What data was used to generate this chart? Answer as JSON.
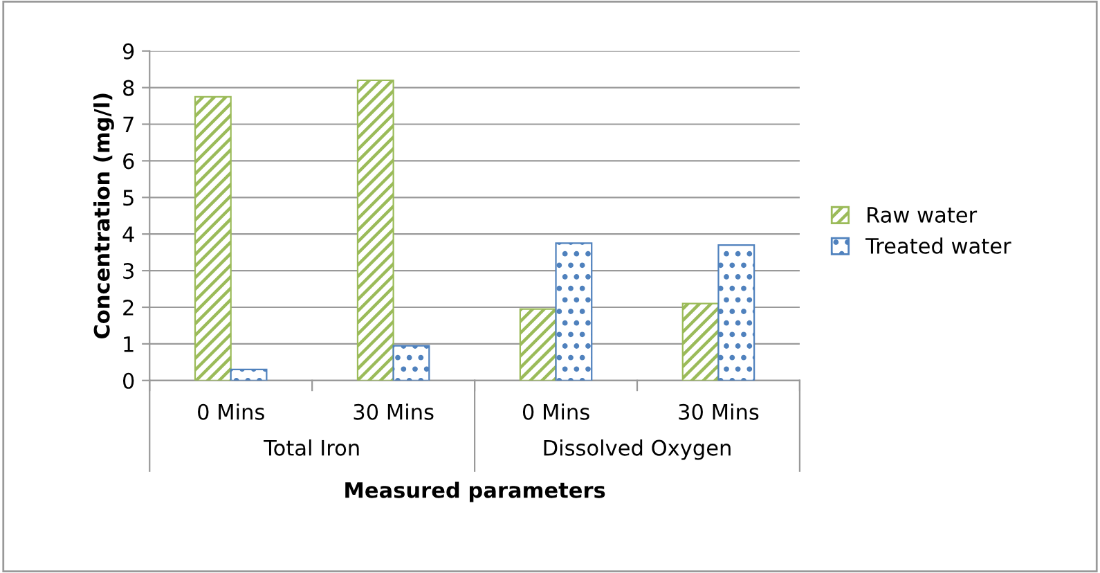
{
  "chart_data": {
    "type": "bar",
    "xlabel": "Measured parameters",
    "ylabel": "Concentration (mg/l)",
    "categories": [
      "0 Mins",
      "30 Mins",
      "0 Mins",
      "30 Mins"
    ],
    "annotations": [
      "Total Iron",
      "Dissolved Oxygen"
    ],
    "series": [
      {
        "name": "Raw water",
        "color": "#9bbb59",
        "values": [
          7.75,
          8.2,
          1.95,
          2.1
        ]
      },
      {
        "name": "Treated water",
        "color": "#4f81bd",
        "values": [
          0.3,
          0.95,
          3.75,
          3.7
        ]
      }
    ],
    "ylim": [
      0,
      9
    ],
    "yticks": [
      0,
      1,
      2,
      3,
      4,
      5,
      6,
      7,
      8,
      9
    ],
    "grid": "y",
    "legend": "right"
  }
}
